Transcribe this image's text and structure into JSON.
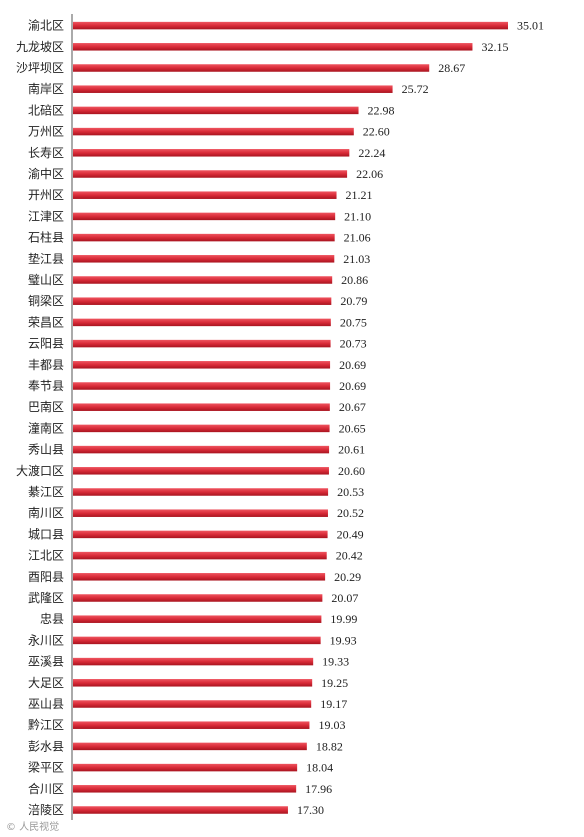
{
  "chart_data": {
    "type": "bar",
    "orientation": "horizontal",
    "categories": [
      "渝北区",
      "九龙坡区",
      "沙坪坝区",
      "南岸区",
      "北碚区",
      "万州区",
      "长寿区",
      "渝中区",
      "开州区",
      "江津区",
      "石柱县",
      "垫江县",
      "璧山区",
      "铜梁区",
      "荣昌区",
      "云阳县",
      "丰都县",
      "奉节县",
      "巴南区",
      "潼南区",
      "秀山县",
      "大渡口区",
      "綦江区",
      "南川区",
      "城口县",
      "江北区",
      "酉阳县",
      "武隆区",
      "忠县",
      "永川区",
      "巫溪县",
      "大足区",
      "巫山县",
      "黔江区",
      "彭水县",
      "梁平区",
      "合川区",
      "涪陵区"
    ],
    "values": [
      35.01,
      32.15,
      28.67,
      25.72,
      22.98,
      22.6,
      22.24,
      22.06,
      21.21,
      21.1,
      21.06,
      21.03,
      20.86,
      20.79,
      20.75,
      20.73,
      20.69,
      20.69,
      20.67,
      20.65,
      20.61,
      20.6,
      20.53,
      20.52,
      20.49,
      20.42,
      20.29,
      20.07,
      19.99,
      19.93,
      19.33,
      19.25,
      19.17,
      19.03,
      18.82,
      18.04,
      17.96,
      17.3
    ],
    "value_labels": [
      "35.01",
      "32.15",
      "28.67",
      "25.72",
      "22.98",
      "22.60",
      "22.24",
      "22.06",
      "21.21",
      "21.10",
      "21.06",
      "21.03",
      "20.86",
      "20.79",
      "20.75",
      "20.73",
      "20.69",
      "20.69",
      "20.67",
      "20.65",
      "20.61",
      "20.60",
      "20.53",
      "20.52",
      "20.49",
      "20.42",
      "20.29",
      "20.07",
      "19.99",
      "19.93",
      "19.33",
      "19.25",
      "19.17",
      "19.03",
      "18.82",
      "18.04",
      "17.96",
      "17.30"
    ],
    "xlim": [
      0,
      35.01
    ],
    "bar_color": "#d92b38",
    "grid": false,
    "legend": "none"
  },
  "watermark": {
    "text": "© 人民视觉"
  }
}
